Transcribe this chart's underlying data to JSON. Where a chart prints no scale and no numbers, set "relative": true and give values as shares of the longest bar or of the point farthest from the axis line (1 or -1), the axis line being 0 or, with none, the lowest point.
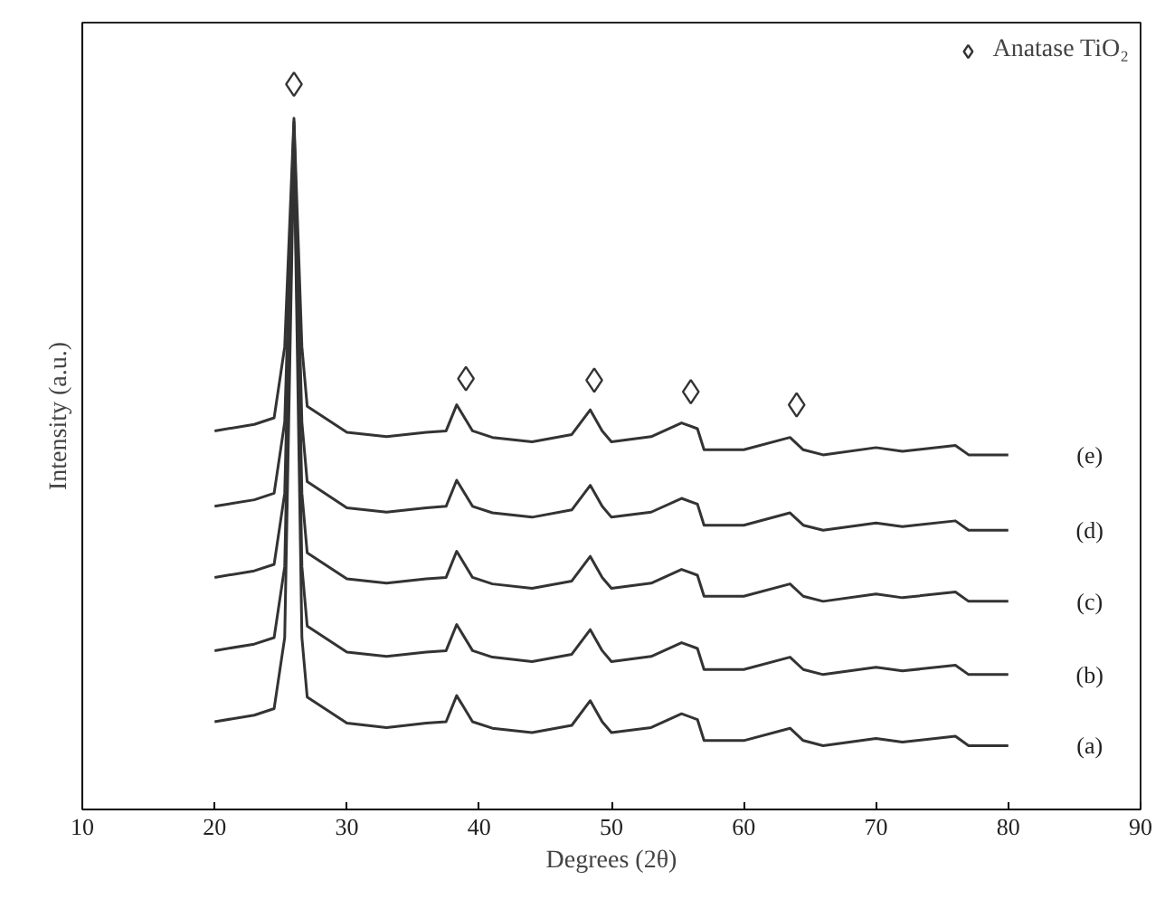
{
  "chart_data": {
    "type": "line",
    "relative": true,
    "xlabel": "Degrees (2θ)",
    "ylabel": "Intensity (a.u.)",
    "xlim": [
      10,
      90
    ],
    "xticks": [
      10,
      20,
      30,
      40,
      50,
      60,
      70,
      80,
      90
    ],
    "grid": false,
    "legend": "top right",
    "tick_labels": "x",
    "line_style": "solid",
    "marker": "none",
    "x": [
      20,
      23,
      24.5,
      25.3,
      26,
      26.6,
      27,
      30,
      33,
      36,
      37.5,
      38.3,
      39.5,
      41,
      44,
      47,
      48.4,
      49.3,
      50,
      53,
      55.3,
      56.5,
      57,
      60,
      63.5,
      64.5,
      66,
      70,
      72,
      76,
      77,
      80
    ],
    "series": [
      {
        "name": "(a)",
        "color": "#333333",
        "values": [
          0.121,
          0.13,
          0.139,
          0.237,
          0.922,
          0.237,
          0.155,
          0.119,
          0.113,
          0.119,
          0.121,
          0.157,
          0.121,
          0.112,
          0.106,
          0.116,
          0.15,
          0.121,
          0.106,
          0.113,
          0.132,
          0.124,
          0.095,
          0.095,
          0.112,
          0.095,
          0.088,
          0.098,
          0.093,
          0.101,
          0.088,
          0.088
        ]
      },
      {
        "name": "(b)",
        "color": "#333333",
        "values": [
          0.219,
          0.228,
          0.237,
          0.335,
          0.935,
          0.335,
          0.253,
          0.217,
          0.211,
          0.217,
          0.219,
          0.255,
          0.219,
          0.21,
          0.204,
          0.214,
          0.248,
          0.219,
          0.204,
          0.211,
          0.23,
          0.222,
          0.193,
          0.193,
          0.21,
          0.193,
          0.186,
          0.196,
          0.191,
          0.199,
          0.186,
          0.186
        ]
      },
      {
        "name": "(c)",
        "color": "#333333",
        "values": [
          0.32,
          0.329,
          0.338,
          0.436,
          0.943,
          0.436,
          0.354,
          0.318,
          0.312,
          0.318,
          0.32,
          0.356,
          0.32,
          0.311,
          0.305,
          0.315,
          0.349,
          0.32,
          0.305,
          0.312,
          0.331,
          0.323,
          0.294,
          0.294,
          0.311,
          0.294,
          0.287,
          0.297,
          0.292,
          0.3,
          0.287,
          0.287
        ]
      },
      {
        "name": "(d)",
        "color": "#333333",
        "values": [
          0.418,
          0.427,
          0.436,
          0.534,
          0.948,
          0.534,
          0.452,
          0.416,
          0.41,
          0.416,
          0.418,
          0.454,
          0.418,
          0.409,
          0.403,
          0.413,
          0.447,
          0.418,
          0.403,
          0.41,
          0.429,
          0.421,
          0.392,
          0.392,
          0.409,
          0.392,
          0.385,
          0.395,
          0.39,
          0.398,
          0.385,
          0.385
        ]
      },
      {
        "name": "(e)",
        "color": "#333333",
        "values": [
          0.522,
          0.531,
          0.54,
          0.638,
          0.953,
          0.638,
          0.556,
          0.52,
          0.514,
          0.52,
          0.522,
          0.558,
          0.522,
          0.513,
          0.507,
          0.517,
          0.551,
          0.522,
          0.507,
          0.514,
          0.533,
          0.525,
          0.496,
          0.496,
          0.513,
          0.496,
          0.489,
          0.499,
          0.494,
          0.502,
          0.489,
          0.489
        ]
      },
      {
        "name": "Anatase TiO₂",
        "type": "scatter",
        "marker": "diamond",
        "color": "#333333",
        "x": [
          26,
          39,
          48.7,
          56,
          64
        ],
        "values": [
          1.0,
          0.594,
          0.592,
          0.576,
          0.558
        ]
      }
    ]
  }
}
